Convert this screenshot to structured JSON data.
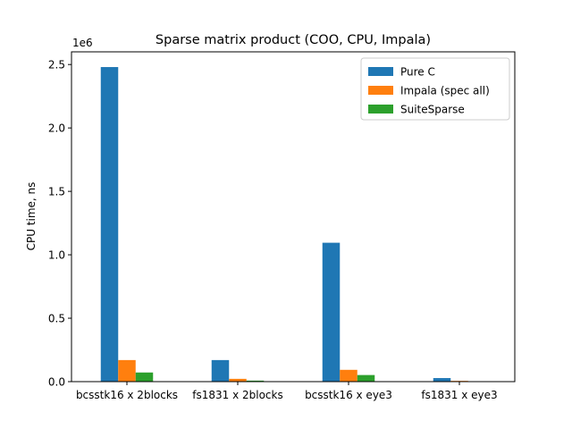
{
  "chart_data": {
    "type": "bar",
    "title": "Sparse matrix product (COO, CPU, Impala)",
    "xlabel": "",
    "ylabel": "CPU time, ns",
    "y_multiplier_label": "1e6",
    "categories": [
      "bcsstk16 x 2blocks",
      "fs1831 x 2blocks",
      "bcsstk16 x eye3",
      "fs1831 x eye3"
    ],
    "series": [
      {
        "name": "Pure C",
        "color": "#1f77b4",
        "values": [
          2480000,
          170000,
          1095000,
          28000
        ]
      },
      {
        "name": "Impala (spec all)",
        "color": "#ff7f0e",
        "values": [
          170000,
          22000,
          93000,
          6000
        ]
      },
      {
        "name": "SuiteSparse",
        "color": "#2ca02c",
        "values": [
          72000,
          8000,
          52000,
          1500
        ]
      }
    ],
    "ylim": [
      0,
      2600000
    ],
    "yticks": [
      0,
      500000,
      1000000,
      1500000,
      2000000,
      2500000
    ],
    "ytick_labels": [
      "0.0",
      "0.5",
      "1.0",
      "1.5",
      "2.0",
      "2.5"
    ],
    "legend": "top-right",
    "grid": false
  }
}
